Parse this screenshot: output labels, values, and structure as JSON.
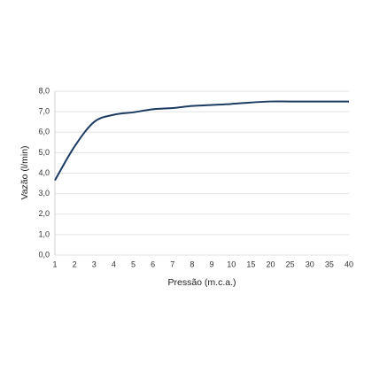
{
  "chart_data": {
    "type": "line",
    "x_label": "Pressão (m.c.a.)",
    "y_label": "Vazão (l/min)",
    "categories": [
      "1",
      "2",
      "3",
      "4",
      "5",
      "6",
      "7",
      "8",
      "9",
      "10",
      "15",
      "20",
      "25",
      "30",
      "35",
      "40"
    ],
    "values": [
      3.65,
      5.3,
      6.5,
      6.85,
      6.97,
      7.12,
      7.18,
      7.28,
      7.33,
      7.38,
      7.45,
      7.5,
      7.5,
      7.5,
      7.5,
      7.5
    ],
    "color": "#1c3b63",
    "ylim": [
      0,
      8
    ],
    "yticks": [
      {
        "value": 0,
        "label": "0,0"
      },
      {
        "value": 1,
        "label": "1,0"
      },
      {
        "value": 2,
        "label": "2,0"
      },
      {
        "value": 3,
        "label": "3,0"
      },
      {
        "value": 4,
        "label": "4,0"
      },
      {
        "value": 5,
        "label": "5,0"
      },
      {
        "value": 6,
        "label": "6,0"
      },
      {
        "value": 7,
        "label": "7,0"
      },
      {
        "value": 8,
        "label": "8,0"
      }
    ],
    "grid": true
  }
}
